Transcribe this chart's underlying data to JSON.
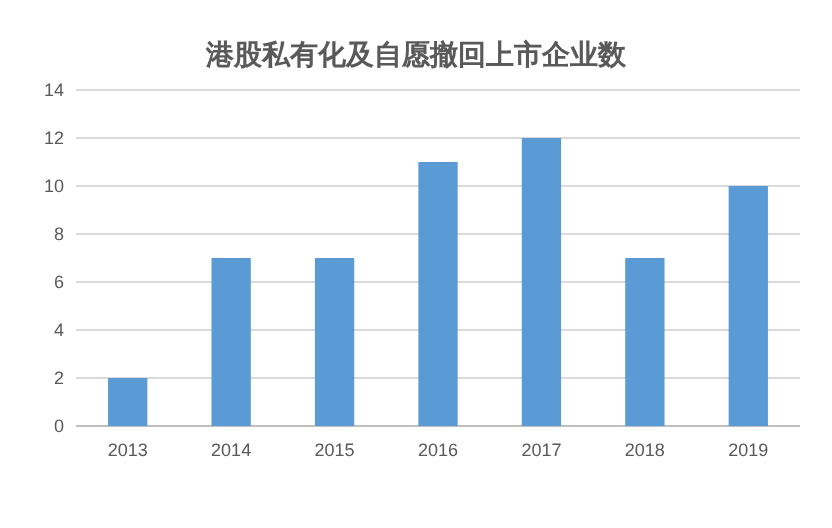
{
  "chart_data": {
    "type": "bar",
    "title": "港股私有化及自愿撤回上市企业数",
    "categories": [
      "2013",
      "2014",
      "2015",
      "2016",
      "2017",
      "2018",
      "2019"
    ],
    "values": [
      2,
      7,
      7,
      11,
      12,
      7,
      10
    ],
    "color": "#5b9bd5",
    "ylim": [
      0,
      14
    ],
    "yticks": [
      0,
      2,
      4,
      6,
      8,
      10,
      12,
      14
    ],
    "grid": "y"
  }
}
